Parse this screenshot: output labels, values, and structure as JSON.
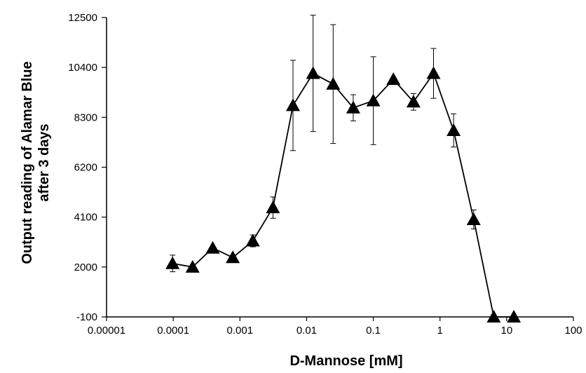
{
  "chart_data": {
    "type": "scatter",
    "title": "",
    "xlabel": "D-Mannose [mM]",
    "ylabel_lines": [
      "Output reading of Alamar Blue",
      "after 3 days"
    ],
    "x_scale": "log",
    "xlim": [
      1e-05,
      100
    ],
    "ylim": [
      -100,
      12500
    ],
    "x_ticks": [
      1e-05,
      0.0001,
      0.001,
      0.01,
      0.1,
      1,
      10,
      100
    ],
    "x_tick_labels": [
      "0.00001",
      "0.0001",
      "0.001",
      "0.01",
      "0.1",
      "1",
      "10",
      "100"
    ],
    "y_ticks": [
      -100,
      2000,
      4100,
      6200,
      8300,
      10400,
      12500
    ],
    "y_tick_labels": [
      "-100",
      "2000",
      "4100",
      "6200",
      "8300",
      "10400",
      "12500"
    ],
    "grid": false,
    "marker": "triangle",
    "series": [
      {
        "points": [
          {
            "x": 9.77e-05,
            "y": 2150,
            "err": 350
          },
          {
            "x": 0.000195,
            "y": 2000,
            "err": 0
          },
          {
            "x": 0.000391,
            "y": 2800,
            "err": 0
          },
          {
            "x": 0.000781,
            "y": 2400,
            "err": 0
          },
          {
            "x": 0.00156,
            "y": 3100,
            "err": 250
          },
          {
            "x": 0.00313,
            "y": 4500,
            "err": 450
          },
          {
            "x": 0.00625,
            "y": 8800,
            "err": 1900
          },
          {
            "x": 0.0125,
            "y": 10150,
            "err": 2450
          },
          {
            "x": 0.025,
            "y": 9700,
            "err": 2500
          },
          {
            "x": 0.05,
            "y": 8700,
            "err": 550
          },
          {
            "x": 0.1,
            "y": 9000,
            "err": 1850
          },
          {
            "x": 0.2,
            "y": 9900,
            "err": 0
          },
          {
            "x": 0.4,
            "y": 8950,
            "err": 350
          },
          {
            "x": 0.8,
            "y": 10150,
            "err": 1050
          },
          {
            "x": 1.6,
            "y": 7750,
            "err": 700
          },
          {
            "x": 3.2,
            "y": 4000,
            "err": 400
          },
          {
            "x": 6.4,
            "y": -100,
            "err": 0
          },
          {
            "x": 12.8,
            "y": -100,
            "err": 0
          }
        ]
      }
    ]
  }
}
